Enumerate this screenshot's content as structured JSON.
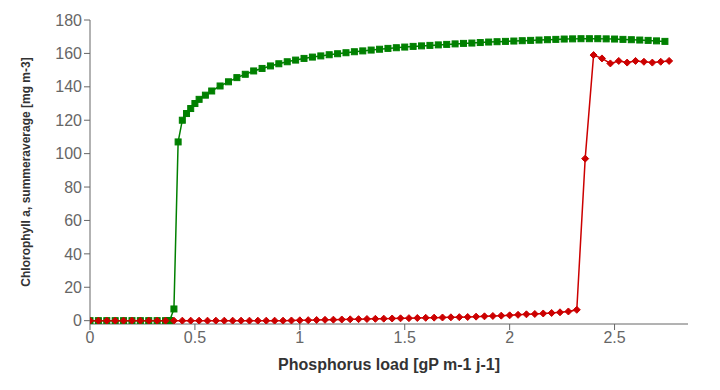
{
  "chart_data": {
    "type": "line",
    "xlabel": "Phosphorus load [gP m-1 j-1]",
    "ylabel": "Chlorophyll a, summeraverage  [mg m-3]",
    "xlim": [
      0,
      2.85
    ],
    "ylim": [
      -2,
      180
    ],
    "xticks": [
      0,
      0.5,
      1,
      1.5,
      2,
      2.5
    ],
    "yticks": [
      0,
      20,
      40,
      60,
      80,
      100,
      120,
      140,
      160,
      180
    ],
    "grid": false,
    "series": [
      {
        "color": "#008000",
        "marker": "square",
        "x": [
          0.0,
          0.04,
          0.08,
          0.12,
          0.16,
          0.2,
          0.24,
          0.28,
          0.32,
          0.36,
          0.38,
          0.4,
          0.42,
          0.44,
          0.46,
          0.48,
          0.5,
          0.52,
          0.55,
          0.58,
          0.62,
          0.66,
          0.7,
          0.74,
          0.78,
          0.82,
          0.86,
          0.9,
          0.94,
          0.98,
          1.02,
          1.06,
          1.1,
          1.14,
          1.18,
          1.22,
          1.26,
          1.3,
          1.34,
          1.38,
          1.42,
          1.46,
          1.5,
          1.54,
          1.58,
          1.62,
          1.66,
          1.7,
          1.74,
          1.78,
          1.82,
          1.86,
          1.9,
          1.94,
          1.98,
          2.02,
          2.06,
          2.1,
          2.14,
          2.18,
          2.22,
          2.26,
          2.3,
          2.34,
          2.38,
          2.42,
          2.46,
          2.5,
          2.54,
          2.58,
          2.62,
          2.66,
          2.7,
          2.74
        ],
        "values": [
          0.0,
          0.0,
          0.0,
          0.0,
          0.0,
          0.0,
          0.0,
          0.0,
          0.0,
          0.0,
          0.1,
          7.0,
          107.0,
          120.0,
          124.0,
          127.0,
          130.0,
          132.5,
          135.0,
          137.5,
          140.5,
          143.0,
          145.5,
          147.5,
          149.5,
          151.0,
          152.5,
          153.8,
          155.0,
          156.0,
          157.0,
          157.8,
          158.5,
          159.2,
          159.8,
          160.4,
          161.0,
          161.5,
          162.0,
          162.5,
          163.0,
          163.4,
          163.8,
          164.2,
          164.5,
          164.8,
          165.1,
          165.4,
          165.7,
          166.0,
          166.2,
          166.5,
          166.8,
          167.0,
          167.2,
          167.4,
          167.6,
          167.8,
          168.0,
          168.2,
          168.4,
          168.6,
          168.7,
          168.8,
          168.8,
          168.8,
          168.7,
          168.6,
          168.4,
          168.2,
          168.0,
          167.8,
          167.5,
          167.2
        ]
      },
      {
        "color": "#cc0000",
        "marker": "diamond",
        "x": [
          0.0,
          0.04,
          0.08,
          0.12,
          0.16,
          0.2,
          0.24,
          0.28,
          0.32,
          0.36,
          0.4,
          0.44,
          0.48,
          0.52,
          0.56,
          0.6,
          0.64,
          0.68,
          0.72,
          0.76,
          0.8,
          0.84,
          0.88,
          0.92,
          0.96,
          1.0,
          1.04,
          1.08,
          1.12,
          1.16,
          1.2,
          1.24,
          1.28,
          1.32,
          1.36,
          1.4,
          1.44,
          1.48,
          1.52,
          1.56,
          1.6,
          1.64,
          1.68,
          1.72,
          1.76,
          1.8,
          1.84,
          1.88,
          1.92,
          1.96,
          2.0,
          2.04,
          2.08,
          2.12,
          2.16,
          2.2,
          2.24,
          2.28,
          2.32,
          2.36,
          2.4,
          2.44,
          2.48,
          2.52,
          2.56,
          2.6,
          2.64,
          2.68,
          2.72,
          2.76
        ],
        "values": [
          0.0,
          0.0,
          0.0,
          0.0,
          0.0,
          0.0,
          0.0,
          0.0,
          0.0,
          0.0,
          0.0,
          0.0,
          0.0,
          0.0,
          0.0,
          0.0,
          0.0,
          0.0,
          0.0,
          0.0,
          0.0,
          0.0,
          0.0,
          0.0,
          0.1,
          0.2,
          0.3,
          0.4,
          0.5,
          0.6,
          0.7,
          0.8,
          0.9,
          1.0,
          1.1,
          1.2,
          1.3,
          1.4,
          1.5,
          1.6,
          1.7,
          1.8,
          1.9,
          2.0,
          2.1,
          2.2,
          2.4,
          2.6,
          2.8,
          3.0,
          3.2,
          3.5,
          3.8,
          4.0,
          4.3,
          4.6,
          5.0,
          5.5,
          6.5,
          97.0,
          159.0,
          157.0,
          154.0,
          155.5,
          154.5,
          155.5,
          155.0,
          154.5,
          155.0,
          155.5
        ]
      }
    ]
  }
}
